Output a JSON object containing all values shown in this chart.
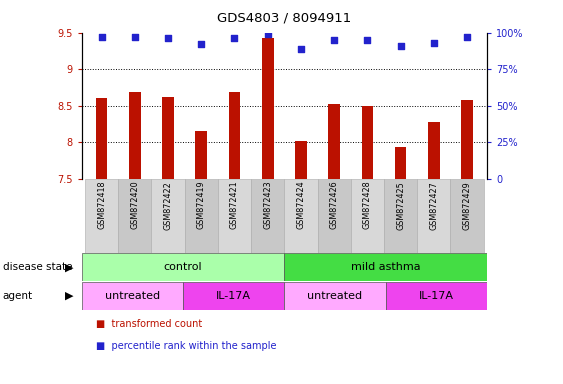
{
  "title": "GDS4803 / 8094911",
  "samples": [
    "GSM872418",
    "GSM872420",
    "GSM872422",
    "GSM872419",
    "GSM872421",
    "GSM872423",
    "GSM872424",
    "GSM872426",
    "GSM872428",
    "GSM872425",
    "GSM872427",
    "GSM872429"
  ],
  "bar_values": [
    8.61,
    8.69,
    8.62,
    8.15,
    8.68,
    9.43,
    8.01,
    8.52,
    8.5,
    7.93,
    8.27,
    8.57
  ],
  "dot_values": [
    97,
    97,
    96,
    92,
    96,
    99,
    89,
    95,
    95,
    91,
    93,
    97
  ],
  "bar_color": "#bb1100",
  "dot_color": "#2222cc",
  "ylim_left": [
    7.5,
    9.5
  ],
  "ylim_right": [
    0,
    100
  ],
  "yticks_left": [
    7.5,
    8.0,
    8.5,
    9.0,
    9.5
  ],
  "yticks_right": [
    0,
    25,
    50,
    75,
    100
  ],
  "gridlines": [
    8.0,
    8.5,
    9.0
  ],
  "disease_state_groups": [
    {
      "label": "control",
      "start": 0,
      "end": 6,
      "color": "#aaffaa"
    },
    {
      "label": "mild asthma",
      "start": 6,
      "end": 12,
      "color": "#44dd44"
    }
  ],
  "agent_groups": [
    {
      "label": "untreated",
      "start": 0,
      "end": 3,
      "color": "#ffaaff"
    },
    {
      "label": "IL-17A",
      "start": 3,
      "end": 6,
      "color": "#ee44ee"
    },
    {
      "label": "untreated",
      "start": 6,
      "end": 9,
      "color": "#ffaaff"
    },
    {
      "label": "IL-17A",
      "start": 9,
      "end": 12,
      "color": "#ee44ee"
    }
  ],
  "legend_items": [
    {
      "label": "transformed count",
      "color": "#bb1100"
    },
    {
      "label": "percentile rank within the sample",
      "color": "#2222cc"
    }
  ],
  "bar_width": 0.35,
  "disease_row_label": "disease state",
  "agent_row_label": "agent",
  "box_colors": [
    "#d8d8d8",
    "#c8c8c8"
  ]
}
